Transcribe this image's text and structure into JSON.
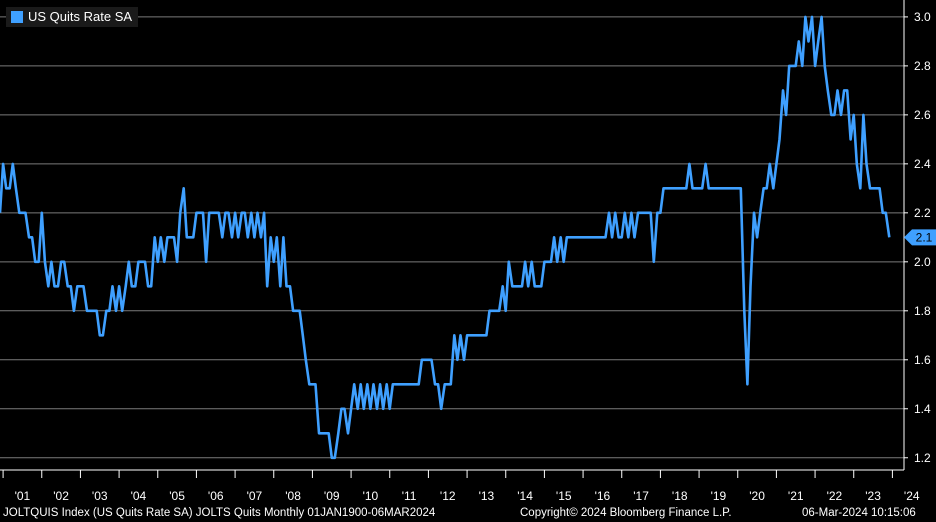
{
  "chart_data": {
    "type": "line",
    "series": [
      {
        "name": "US Quits Rate SA",
        "color": "#3fa0ff",
        "points": [
          [
            2000.92,
            2.2
          ],
          [
            2001.0,
            2.4
          ],
          [
            2001.08,
            2.3
          ],
          [
            2001.17,
            2.3
          ],
          [
            2001.25,
            2.4
          ],
          [
            2001.33,
            2.3
          ],
          [
            2001.42,
            2.2
          ],
          [
            2001.5,
            2.2
          ],
          [
            2001.58,
            2.2
          ],
          [
            2001.67,
            2.1
          ],
          [
            2001.75,
            2.1
          ],
          [
            2001.83,
            2.0
          ],
          [
            2001.92,
            2.0
          ],
          [
            2002.0,
            2.2
          ],
          [
            2002.08,
            2.0
          ],
          [
            2002.17,
            1.9
          ],
          [
            2002.25,
            2.0
          ],
          [
            2002.33,
            1.9
          ],
          [
            2002.42,
            1.9
          ],
          [
            2002.5,
            2.0
          ],
          [
            2002.58,
            2.0
          ],
          [
            2002.67,
            1.9
          ],
          [
            2002.75,
            1.9
          ],
          [
            2002.83,
            1.8
          ],
          [
            2002.92,
            1.9
          ],
          [
            2003.0,
            1.9
          ],
          [
            2003.08,
            1.9
          ],
          [
            2003.17,
            1.8
          ],
          [
            2003.25,
            1.8
          ],
          [
            2003.33,
            1.8
          ],
          [
            2003.42,
            1.8
          ],
          [
            2003.5,
            1.7
          ],
          [
            2003.58,
            1.7
          ],
          [
            2003.67,
            1.8
          ],
          [
            2003.75,
            1.8
          ],
          [
            2003.83,
            1.9
          ],
          [
            2003.92,
            1.8
          ],
          [
            2004.0,
            1.9
          ],
          [
            2004.08,
            1.8
          ],
          [
            2004.17,
            1.9
          ],
          [
            2004.25,
            2.0
          ],
          [
            2004.33,
            1.9
          ],
          [
            2004.42,
            1.9
          ],
          [
            2004.5,
            2.0
          ],
          [
            2004.58,
            2.0
          ],
          [
            2004.67,
            2.0
          ],
          [
            2004.75,
            1.9
          ],
          [
            2004.83,
            1.9
          ],
          [
            2004.92,
            2.1
          ],
          [
            2005.0,
            2.0
          ],
          [
            2005.08,
            2.1
          ],
          [
            2005.17,
            2.0
          ],
          [
            2005.25,
            2.1
          ],
          [
            2005.33,
            2.1
          ],
          [
            2005.42,
            2.1
          ],
          [
            2005.5,
            2.0
          ],
          [
            2005.58,
            2.2
          ],
          [
            2005.67,
            2.3
          ],
          [
            2005.75,
            2.1
          ],
          [
            2005.83,
            2.1
          ],
          [
            2005.92,
            2.1
          ],
          [
            2006.0,
            2.2
          ],
          [
            2006.08,
            2.2
          ],
          [
            2006.17,
            2.2
          ],
          [
            2006.25,
            2.0
          ],
          [
            2006.33,
            2.2
          ],
          [
            2006.42,
            2.2
          ],
          [
            2006.5,
            2.2
          ],
          [
            2006.58,
            2.2
          ],
          [
            2006.67,
            2.1
          ],
          [
            2006.75,
            2.2
          ],
          [
            2006.83,
            2.2
          ],
          [
            2006.92,
            2.1
          ],
          [
            2007.0,
            2.2
          ],
          [
            2007.08,
            2.1
          ],
          [
            2007.17,
            2.2
          ],
          [
            2007.25,
            2.2
          ],
          [
            2007.33,
            2.1
          ],
          [
            2007.42,
            2.2
          ],
          [
            2007.5,
            2.1
          ],
          [
            2007.58,
            2.2
          ],
          [
            2007.67,
            2.1
          ],
          [
            2007.75,
            2.2
          ],
          [
            2007.83,
            1.9
          ],
          [
            2007.92,
            2.1
          ],
          [
            2008.0,
            2.0
          ],
          [
            2008.08,
            2.1
          ],
          [
            2008.17,
            1.9
          ],
          [
            2008.25,
            2.1
          ],
          [
            2008.33,
            1.9
          ],
          [
            2008.42,
            1.9
          ],
          [
            2008.5,
            1.8
          ],
          [
            2008.58,
            1.8
          ],
          [
            2008.67,
            1.8
          ],
          [
            2008.75,
            1.7
          ],
          [
            2008.83,
            1.6
          ],
          [
            2008.92,
            1.5
          ],
          [
            2009.0,
            1.5
          ],
          [
            2009.08,
            1.5
          ],
          [
            2009.17,
            1.3
          ],
          [
            2009.25,
            1.3
          ],
          [
            2009.33,
            1.3
          ],
          [
            2009.42,
            1.3
          ],
          [
            2009.5,
            1.2
          ],
          [
            2009.58,
            1.2
          ],
          [
            2009.67,
            1.3
          ],
          [
            2009.75,
            1.4
          ],
          [
            2009.83,
            1.4
          ],
          [
            2009.92,
            1.3
          ],
          [
            2010.0,
            1.4
          ],
          [
            2010.08,
            1.5
          ],
          [
            2010.17,
            1.4
          ],
          [
            2010.25,
            1.5
          ],
          [
            2010.33,
            1.4
          ],
          [
            2010.42,
            1.5
          ],
          [
            2010.5,
            1.4
          ],
          [
            2010.58,
            1.5
          ],
          [
            2010.67,
            1.4
          ],
          [
            2010.75,
            1.5
          ],
          [
            2010.83,
            1.4
          ],
          [
            2010.92,
            1.5
          ],
          [
            2011.0,
            1.4
          ],
          [
            2011.08,
            1.5
          ],
          [
            2011.17,
            1.5
          ],
          [
            2011.25,
            1.5
          ],
          [
            2011.33,
            1.5
          ],
          [
            2011.42,
            1.5
          ],
          [
            2011.5,
            1.5
          ],
          [
            2011.58,
            1.5
          ],
          [
            2011.67,
            1.5
          ],
          [
            2011.75,
            1.5
          ],
          [
            2011.83,
            1.6
          ],
          [
            2011.92,
            1.6
          ],
          [
            2012.0,
            1.6
          ],
          [
            2012.08,
            1.6
          ],
          [
            2012.17,
            1.5
          ],
          [
            2012.25,
            1.5
          ],
          [
            2012.33,
            1.4
          ],
          [
            2012.42,
            1.5
          ],
          [
            2012.5,
            1.5
          ],
          [
            2012.58,
            1.5
          ],
          [
            2012.67,
            1.7
          ],
          [
            2012.75,
            1.6
          ],
          [
            2012.83,
            1.7
          ],
          [
            2012.92,
            1.6
          ],
          [
            2013.0,
            1.7
          ],
          [
            2013.08,
            1.7
          ],
          [
            2013.17,
            1.7
          ],
          [
            2013.25,
            1.7
          ],
          [
            2013.33,
            1.7
          ],
          [
            2013.42,
            1.7
          ],
          [
            2013.5,
            1.7
          ],
          [
            2013.58,
            1.8
          ],
          [
            2013.67,
            1.8
          ],
          [
            2013.75,
            1.8
          ],
          [
            2013.83,
            1.8
          ],
          [
            2013.92,
            1.9
          ],
          [
            2014.0,
            1.8
          ],
          [
            2014.08,
            2.0
          ],
          [
            2014.17,
            1.9
          ],
          [
            2014.25,
            1.9
          ],
          [
            2014.33,
            1.9
          ],
          [
            2014.42,
            1.9
          ],
          [
            2014.5,
            2.0
          ],
          [
            2014.58,
            1.9
          ],
          [
            2014.67,
            2.0
          ],
          [
            2014.75,
            1.9
          ],
          [
            2014.83,
            1.9
          ],
          [
            2014.92,
            1.9
          ],
          [
            2015.0,
            2.0
          ],
          [
            2015.08,
            2.0
          ],
          [
            2015.17,
            2.0
          ],
          [
            2015.25,
            2.1
          ],
          [
            2015.33,
            2.0
          ],
          [
            2015.42,
            2.1
          ],
          [
            2015.5,
            2.0
          ],
          [
            2015.58,
            2.1
          ],
          [
            2015.67,
            2.1
          ],
          [
            2015.75,
            2.1
          ],
          [
            2015.83,
            2.1
          ],
          [
            2015.92,
            2.1
          ],
          [
            2016.0,
            2.1
          ],
          [
            2016.08,
            2.1
          ],
          [
            2016.17,
            2.1
          ],
          [
            2016.25,
            2.1
          ],
          [
            2016.33,
            2.1
          ],
          [
            2016.42,
            2.1
          ],
          [
            2016.5,
            2.1
          ],
          [
            2016.58,
            2.1
          ],
          [
            2016.67,
            2.2
          ],
          [
            2016.75,
            2.1
          ],
          [
            2016.83,
            2.2
          ],
          [
            2016.92,
            2.1
          ],
          [
            2017.0,
            2.1
          ],
          [
            2017.08,
            2.2
          ],
          [
            2017.17,
            2.1
          ],
          [
            2017.25,
            2.2
          ],
          [
            2017.33,
            2.1
          ],
          [
            2017.42,
            2.2
          ],
          [
            2017.5,
            2.2
          ],
          [
            2017.58,
            2.2
          ],
          [
            2017.67,
            2.2
          ],
          [
            2017.75,
            2.2
          ],
          [
            2017.83,
            2.0
          ],
          [
            2017.92,
            2.2
          ],
          [
            2018.0,
            2.2
          ],
          [
            2018.08,
            2.3
          ],
          [
            2018.17,
            2.3
          ],
          [
            2018.25,
            2.3
          ],
          [
            2018.33,
            2.3
          ],
          [
            2018.42,
            2.3
          ],
          [
            2018.5,
            2.3
          ],
          [
            2018.58,
            2.3
          ],
          [
            2018.67,
            2.3
          ],
          [
            2018.75,
            2.4
          ],
          [
            2018.83,
            2.3
          ],
          [
            2018.92,
            2.3
          ],
          [
            2019.0,
            2.3
          ],
          [
            2019.08,
            2.3
          ],
          [
            2019.17,
            2.4
          ],
          [
            2019.25,
            2.3
          ],
          [
            2019.33,
            2.3
          ],
          [
            2019.42,
            2.3
          ],
          [
            2019.5,
            2.3
          ],
          [
            2019.58,
            2.3
          ],
          [
            2019.67,
            2.3
          ],
          [
            2019.75,
            2.3
          ],
          [
            2019.83,
            2.3
          ],
          [
            2019.92,
            2.3
          ],
          [
            2020.0,
            2.3
          ],
          [
            2020.08,
            2.3
          ],
          [
            2020.17,
            1.8
          ],
          [
            2020.25,
            1.5
          ],
          [
            2020.33,
            1.9
          ],
          [
            2020.42,
            2.2
          ],
          [
            2020.5,
            2.1
          ],
          [
            2020.58,
            2.2
          ],
          [
            2020.67,
            2.3
          ],
          [
            2020.75,
            2.3
          ],
          [
            2020.83,
            2.4
          ],
          [
            2020.92,
            2.3
          ],
          [
            2021.0,
            2.4
          ],
          [
            2021.08,
            2.5
          ],
          [
            2021.17,
            2.7
          ],
          [
            2021.25,
            2.6
          ],
          [
            2021.33,
            2.8
          ],
          [
            2021.42,
            2.8
          ],
          [
            2021.5,
            2.8
          ],
          [
            2021.58,
            2.9
          ],
          [
            2021.67,
            2.8
          ],
          [
            2021.75,
            3.0
          ],
          [
            2021.83,
            2.9
          ],
          [
            2021.92,
            3.0
          ],
          [
            2022.0,
            2.8
          ],
          [
            2022.08,
            2.9
          ],
          [
            2022.17,
            3.0
          ],
          [
            2022.25,
            2.8
          ],
          [
            2022.33,
            2.7
          ],
          [
            2022.42,
            2.6
          ],
          [
            2022.5,
            2.6
          ],
          [
            2022.58,
            2.7
          ],
          [
            2022.67,
            2.6
          ],
          [
            2022.75,
            2.7
          ],
          [
            2022.83,
            2.7
          ],
          [
            2022.92,
            2.5
          ],
          [
            2023.0,
            2.6
          ],
          [
            2023.08,
            2.4
          ],
          [
            2023.17,
            2.3
          ],
          [
            2023.25,
            2.6
          ],
          [
            2023.33,
            2.4
          ],
          [
            2023.42,
            2.3
          ],
          [
            2023.5,
            2.3
          ],
          [
            2023.58,
            2.3
          ],
          [
            2023.67,
            2.3
          ],
          [
            2023.75,
            2.2
          ],
          [
            2023.83,
            2.2
          ],
          [
            2023.92,
            2.1
          ]
        ]
      }
    ],
    "last_value_label": "2.1",
    "ylim": [
      1.15,
      3.02
    ],
    "xlim": [
      2000.92,
      2024.3
    ],
    "y_ticks": [
      "1.2",
      "1.4",
      "1.6",
      "1.8",
      "2.0",
      "2.2",
      "2.4",
      "2.6",
      "2.8",
      "3.0"
    ],
    "y_tick_values": [
      1.2,
      1.4,
      1.6,
      1.8,
      2.0,
      2.2,
      2.4,
      2.6,
      2.8,
      3.0
    ],
    "x_ticks": [
      "'01",
      "'02",
      "'03",
      "'04",
      "'05",
      "'06",
      "'07",
      "'08",
      "'09",
      "'10",
      "'11",
      "'12",
      "'13",
      "'14",
      "'15",
      "'16",
      "'17",
      "'18",
      "'19",
      "'20",
      "'21",
      "'22",
      "'23",
      "'24"
    ],
    "x_tick_values": [
      2001,
      2002,
      2003,
      2004,
      2005,
      2006,
      2007,
      2008,
      2009,
      2010,
      2011,
      2012,
      2013,
      2014,
      2015,
      2016,
      2017,
      2018,
      2019,
      2020,
      2021,
      2022,
      2023,
      2024
    ],
    "grid": "horizontal",
    "legend_position": "top-left",
    "y_axis_side": "right"
  },
  "legend": {
    "label": "US Quits Rate SA",
    "color": "#3fa0ff"
  },
  "footer": {
    "left": "JOLTQUIS Index (US Quits Rate SA) JOLTS Quits  Monthly 01JAN1900-06MAR2024",
    "center": "Copyright© 2024 Bloomberg Finance L.P.",
    "right": "06-Mar-2024 10:15:06"
  },
  "colors": {
    "background": "#000000",
    "grid": "#7a7a7a",
    "line": "#3fa0ff"
  }
}
